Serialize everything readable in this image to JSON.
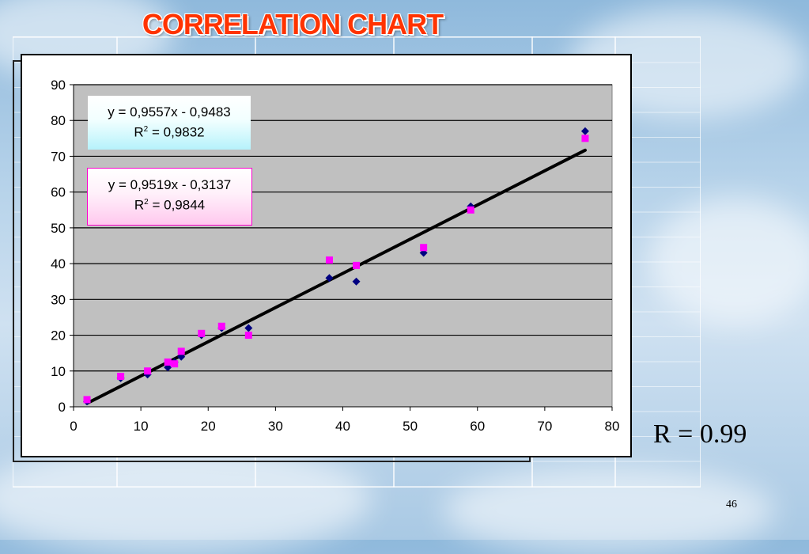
{
  "slide": {
    "title": "CORRELATION CHART",
    "r_value": "R = 0.99",
    "page_number": "46"
  },
  "equations": {
    "eq1": {
      "line": "y = 0,9557x - 0,9483",
      "r_label": "R",
      "r_sup": "2",
      "r_value": " = 0,9832"
    },
    "eq2": {
      "line": "y = 0,9519x - 0,3137",
      "r_label": "R",
      "r_sup": "2",
      "r_value": " = 0,9844"
    }
  },
  "colors": {
    "series1": "#000080",
    "series2": "#ff00ff",
    "trendline": "#000000",
    "plot_bg": "#c0c0c0",
    "title": "#ff3300"
  },
  "chart_data": {
    "type": "scatter",
    "title": "",
    "xlabel": "",
    "ylabel": "",
    "xlim": [
      0,
      80
    ],
    "ylim": [
      0,
      90
    ],
    "x_ticks": [
      0,
      10,
      20,
      30,
      40,
      50,
      60,
      70,
      80
    ],
    "y_ticks": [
      0,
      10,
      20,
      30,
      40,
      50,
      60,
      70,
      80,
      90
    ],
    "grid": "horizontal",
    "legend": "none",
    "series": [
      {
        "marker": "diamond",
        "color": "#000080",
        "points": [
          [
            2,
            1.5
          ],
          [
            7,
            8
          ],
          [
            11,
            9
          ],
          [
            14,
            11
          ],
          [
            15,
            12.5
          ],
          [
            16,
            14
          ],
          [
            19,
            20
          ],
          [
            22,
            22
          ],
          [
            26,
            22
          ],
          [
            38,
            36
          ],
          [
            42,
            35
          ],
          [
            52,
            43
          ],
          [
            59,
            56
          ],
          [
            76,
            77
          ]
        ]
      },
      {
        "marker": "square",
        "color": "#ff00ff",
        "points": [
          [
            2,
            2
          ],
          [
            7,
            8.5
          ],
          [
            11,
            10
          ],
          [
            14,
            12.5
          ],
          [
            15,
            12
          ],
          [
            16,
            15.5
          ],
          [
            19,
            20.5
          ],
          [
            22,
            22.5
          ],
          [
            26,
            20
          ],
          [
            38,
            41
          ],
          [
            42,
            39.5
          ],
          [
            52,
            44.5
          ],
          [
            59,
            55
          ],
          [
            76,
            75
          ]
        ]
      }
    ],
    "trendline": {
      "slope": 0.9557,
      "intercept": -0.9483,
      "x_range": [
        2,
        76
      ],
      "color": "#000000"
    }
  }
}
